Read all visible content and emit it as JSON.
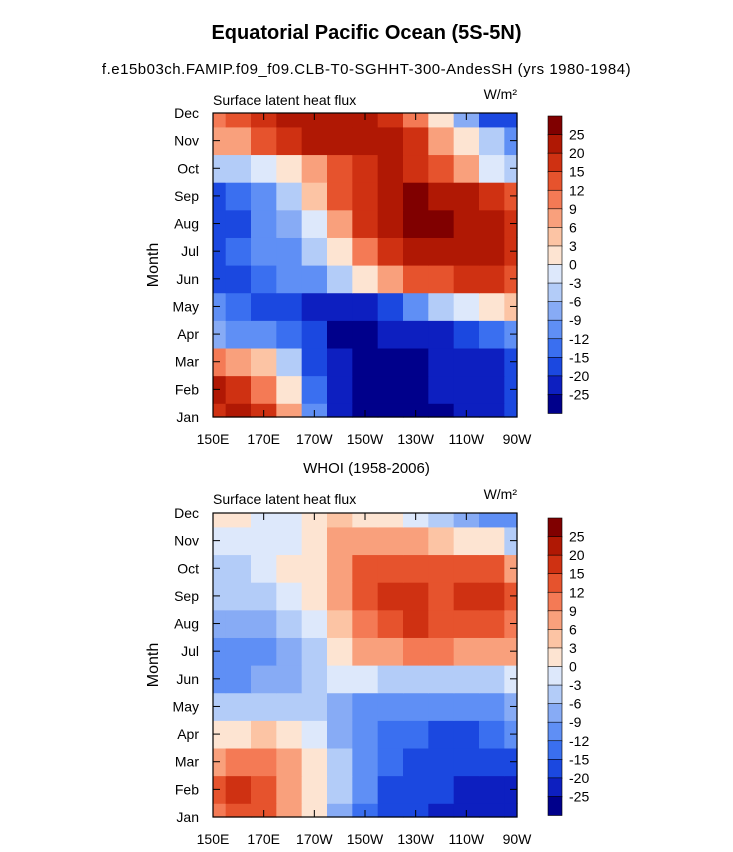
{
  "page": {
    "title": "Equatorial Pacific Ocean (5S-5N)",
    "subtitle": "f.e15b03ch.FAMIP.f09_f09.CLB-T0-SGHHT-300-AndesSH (yrs 1980-1984)"
  },
  "colorbar": {
    "colors": [
      "#00008b",
      "#0d1fc0",
      "#1b48e0",
      "#3a6ff0",
      "#5f8ff5",
      "#87abf5",
      "#b3ccf8",
      "#dde8fb",
      "#fde4d2",
      "#fcc4a4",
      "#f9a07c",
      "#f47a55",
      "#e6532d",
      "#cf3112",
      "#b01804",
      "#800000"
    ],
    "labels": [
      "25",
      "20",
      "15",
      "12",
      "9",
      "6",
      "3",
      "0",
      "-3",
      "-6",
      "-9",
      "-12",
      "-15",
      "-20",
      "-25"
    ],
    "levels": [
      -25,
      -20,
      -15,
      -12,
      -9,
      -6,
      -3,
      0,
      3,
      6,
      9,
      12,
      15,
      20,
      25
    ]
  },
  "chart_data": [
    {
      "type": "heatmap",
      "panel_title": "",
      "title": "Surface latent heat flux",
      "units_label": "W/m²",
      "xlabel": "",
      "ylabel": "Month",
      "x_tick_labels": [
        "150E",
        "170E",
        "170W",
        "150W",
        "130W",
        "110W",
        "90W"
      ],
      "x_range": [
        150,
        270
      ],
      "months": [
        "Jan",
        "Feb",
        "Mar",
        "Apr",
        "May",
        "Jun",
        "Jul",
        "Aug",
        "Sep",
        "Oct",
        "Nov",
        "Dec"
      ],
      "lon": [
        150,
        160,
        170,
        180,
        190,
        200,
        210,
        220,
        230,
        240,
        250,
        260,
        270
      ],
      "values": [
        [
          18,
          24,
          16,
          6,
          -10,
          -22,
          -26,
          -26,
          -26,
          -26,
          -24,
          -22,
          -18
        ],
        [
          20,
          18,
          10,
          2,
          -14,
          -24,
          -26,
          -26,
          -26,
          -25,
          -24,
          -22,
          -20
        ],
        [
          10,
          6,
          4,
          -4,
          -16,
          -24,
          -26,
          -26,
          -26,
          -25,
          -24,
          -22,
          -18
        ],
        [
          -8,
          -10,
          -12,
          -14,
          -20,
          -26,
          -26,
          -25,
          -24,
          -22,
          -18,
          -14,
          -10
        ],
        [
          -12,
          -14,
          -16,
          -18,
          -22,
          -25,
          -22,
          -16,
          -10,
          -4,
          -2,
          2,
          4
        ],
        [
          -18,
          -16,
          -14,
          -12,
          -10,
          -6,
          0,
          8,
          12,
          14,
          16,
          16,
          14
        ],
        [
          -16,
          -14,
          -12,
          -10,
          -6,
          0,
          10,
          18,
          22,
          24,
          22,
          20,
          18
        ],
        [
          -20,
          -16,
          -12,
          -8,
          -2,
          8,
          16,
          24,
          26,
          26,
          24,
          22,
          18
        ],
        [
          -16,
          -14,
          -10,
          -4,
          4,
          12,
          18,
          24,
          26,
          24,
          22,
          18,
          12
        ],
        [
          -6,
          -4,
          -2,
          2,
          8,
          14,
          18,
          20,
          18,
          14,
          6,
          -2,
          -6
        ],
        [
          6,
          8,
          12,
          16,
          20,
          22,
          24,
          20,
          16,
          8,
          2,
          -4,
          -10
        ],
        [
          10,
          14,
          16,
          20,
          22,
          22,
          20,
          16,
          10,
          2,
          -8,
          -16,
          -20
        ]
      ]
    },
    {
      "type": "heatmap",
      "panel_title": "WHOI (1958-2006)",
      "title": "Surface latent heat flux",
      "units_label": "W/m²",
      "xlabel": "",
      "ylabel": "Month",
      "x_tick_labels": [
        "150E",
        "170E",
        "170W",
        "150W",
        "130W",
        "110W",
        "90W"
      ],
      "x_range": [
        150,
        270
      ],
      "months": [
        "Jan",
        "Feb",
        "Mar",
        "Apr",
        "May",
        "Jun",
        "Jul",
        "Aug",
        "Sep",
        "Oct",
        "Nov",
        "Dec"
      ],
      "lon": [
        150,
        160,
        170,
        180,
        190,
        200,
        210,
        220,
        230,
        240,
        250,
        260,
        270
      ],
      "values": [
        [
          10,
          14,
          12,
          6,
          0,
          -8,
          -14,
          -18,
          -20,
          -22,
          -22,
          -22,
          -24
        ],
        [
          12,
          16,
          12,
          8,
          2,
          -6,
          -12,
          -16,
          -18,
          -20,
          -22,
          -22,
          -22
        ],
        [
          8,
          10,
          10,
          6,
          2,
          -6,
          -12,
          -14,
          -16,
          -18,
          -20,
          -20,
          -18
        ],
        [
          0,
          2,
          4,
          2,
          -2,
          -8,
          -12,
          -14,
          -14,
          -16,
          -16,
          -14,
          -12
        ],
        [
          -6,
          -6,
          -6,
          -6,
          -4,
          -8,
          -10,
          -12,
          -12,
          -12,
          -12,
          -10,
          -8
        ],
        [
          -10,
          -10,
          -8,
          -8,
          -4,
          -2,
          -2,
          -4,
          -6,
          -6,
          -6,
          -4,
          -2
        ],
        [
          -10,
          -12,
          -10,
          -8,
          -4,
          2,
          6,
          8,
          10,
          10,
          8,
          6,
          6
        ],
        [
          -8,
          -8,
          -8,
          -4,
          -2,
          4,
          10,
          14,
          16,
          14,
          12,
          12,
          10
        ],
        [
          -6,
          -6,
          -4,
          -2,
          0,
          6,
          12,
          16,
          16,
          14,
          16,
          18,
          14
        ],
        [
          -4,
          -4,
          -2,
          0,
          2,
          8,
          12,
          14,
          12,
          12,
          12,
          12,
          8
        ],
        [
          -2,
          -2,
          -2,
          -1,
          2,
          6,
          8,
          8,
          6,
          4,
          2,
          0,
          -4
        ],
        [
          0,
          0,
          -1,
          -1,
          1,
          3,
          2,
          0,
          -2,
          -4,
          -8,
          -10,
          -12
        ]
      ]
    }
  ]
}
